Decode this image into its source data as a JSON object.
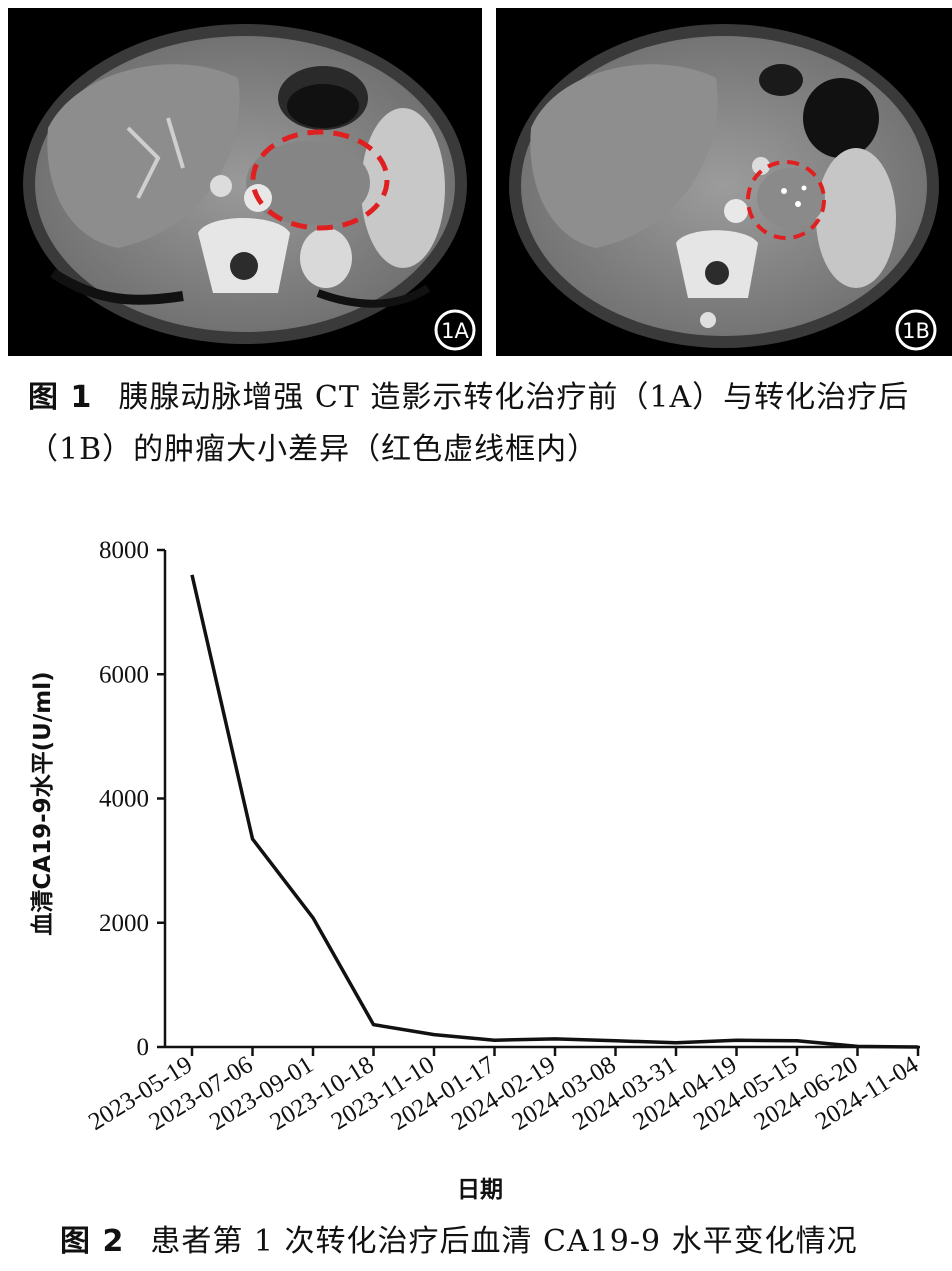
{
  "figure1": {
    "panel_a_label": "1A",
    "panel_b_label": "1B",
    "caption_number": "图 1",
    "caption_text": "胰腺动脉增强 CT 造影示转化治疗前（1A）与转化治疗后（1B）的肿瘤大小差异（红色虚线框内）",
    "highlight_color": "#e02020"
  },
  "figure2": {
    "caption_number": "图 2",
    "caption_text": "患者第 1 次转化治疗后血清 CA19-9 水平变化情况"
  },
  "chart_data": {
    "type": "line",
    "title": "",
    "xlabel": "日期",
    "ylabel": "血清CA19-9水平(U/ml)",
    "ylim": [
      0,
      8000
    ],
    "yticks": [
      0,
      2000,
      4000,
      6000,
      8000
    ],
    "grid": false,
    "line_color": "#111111",
    "categories": [
      "2023-05-19",
      "2023-07-06",
      "2023-09-01",
      "2023-10-18",
      "2023-11-10",
      "2024-01-17",
      "2024-02-19",
      "2024-03-08",
      "2024-03-31",
      "2024-04-19",
      "2024-05-15",
      "2024-06-20",
      "2024-11-04"
    ],
    "values": [
      7600,
      3350,
      2080,
      360,
      200,
      110,
      130,
      100,
      70,
      110,
      100,
      10,
      0
    ]
  }
}
